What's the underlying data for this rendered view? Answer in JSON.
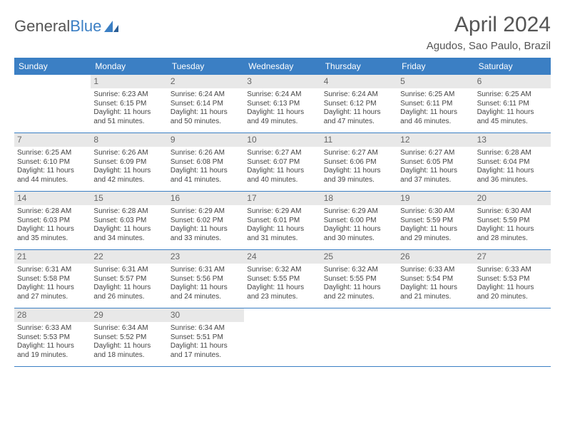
{
  "logo": {
    "part1": "General",
    "part2": "Blue"
  },
  "title": "April 2024",
  "subtitle": "Agudos, Sao Paulo, Brazil",
  "colors": {
    "header_bg": "#3b7fc4",
    "header_fg": "#ffffff",
    "daynum_bg": "#e8e8e8",
    "text": "#444444",
    "border": "#3b7fc4"
  },
  "weekdays": [
    "Sunday",
    "Monday",
    "Tuesday",
    "Wednesday",
    "Thursday",
    "Friday",
    "Saturday"
  ],
  "grid": {
    "rows": 5,
    "cols": 7,
    "first_day_offset": 1,
    "days_in_month": 30
  },
  "days": {
    "1": {
      "sunrise": "Sunrise: 6:23 AM",
      "sunset": "Sunset: 6:15 PM",
      "dl1": "Daylight: 11 hours",
      "dl2": "and 51 minutes."
    },
    "2": {
      "sunrise": "Sunrise: 6:24 AM",
      "sunset": "Sunset: 6:14 PM",
      "dl1": "Daylight: 11 hours",
      "dl2": "and 50 minutes."
    },
    "3": {
      "sunrise": "Sunrise: 6:24 AM",
      "sunset": "Sunset: 6:13 PM",
      "dl1": "Daylight: 11 hours",
      "dl2": "and 49 minutes."
    },
    "4": {
      "sunrise": "Sunrise: 6:24 AM",
      "sunset": "Sunset: 6:12 PM",
      "dl1": "Daylight: 11 hours",
      "dl2": "and 47 minutes."
    },
    "5": {
      "sunrise": "Sunrise: 6:25 AM",
      "sunset": "Sunset: 6:11 PM",
      "dl1": "Daylight: 11 hours",
      "dl2": "and 46 minutes."
    },
    "6": {
      "sunrise": "Sunrise: 6:25 AM",
      "sunset": "Sunset: 6:11 PM",
      "dl1": "Daylight: 11 hours",
      "dl2": "and 45 minutes."
    },
    "7": {
      "sunrise": "Sunrise: 6:25 AM",
      "sunset": "Sunset: 6:10 PM",
      "dl1": "Daylight: 11 hours",
      "dl2": "and 44 minutes."
    },
    "8": {
      "sunrise": "Sunrise: 6:26 AM",
      "sunset": "Sunset: 6:09 PM",
      "dl1": "Daylight: 11 hours",
      "dl2": "and 42 minutes."
    },
    "9": {
      "sunrise": "Sunrise: 6:26 AM",
      "sunset": "Sunset: 6:08 PM",
      "dl1": "Daylight: 11 hours",
      "dl2": "and 41 minutes."
    },
    "10": {
      "sunrise": "Sunrise: 6:27 AM",
      "sunset": "Sunset: 6:07 PM",
      "dl1": "Daylight: 11 hours",
      "dl2": "and 40 minutes."
    },
    "11": {
      "sunrise": "Sunrise: 6:27 AM",
      "sunset": "Sunset: 6:06 PM",
      "dl1": "Daylight: 11 hours",
      "dl2": "and 39 minutes."
    },
    "12": {
      "sunrise": "Sunrise: 6:27 AM",
      "sunset": "Sunset: 6:05 PM",
      "dl1": "Daylight: 11 hours",
      "dl2": "and 37 minutes."
    },
    "13": {
      "sunrise": "Sunrise: 6:28 AM",
      "sunset": "Sunset: 6:04 PM",
      "dl1": "Daylight: 11 hours",
      "dl2": "and 36 minutes."
    },
    "14": {
      "sunrise": "Sunrise: 6:28 AM",
      "sunset": "Sunset: 6:03 PM",
      "dl1": "Daylight: 11 hours",
      "dl2": "and 35 minutes."
    },
    "15": {
      "sunrise": "Sunrise: 6:28 AM",
      "sunset": "Sunset: 6:03 PM",
      "dl1": "Daylight: 11 hours",
      "dl2": "and 34 minutes."
    },
    "16": {
      "sunrise": "Sunrise: 6:29 AM",
      "sunset": "Sunset: 6:02 PM",
      "dl1": "Daylight: 11 hours",
      "dl2": "and 33 minutes."
    },
    "17": {
      "sunrise": "Sunrise: 6:29 AM",
      "sunset": "Sunset: 6:01 PM",
      "dl1": "Daylight: 11 hours",
      "dl2": "and 31 minutes."
    },
    "18": {
      "sunrise": "Sunrise: 6:29 AM",
      "sunset": "Sunset: 6:00 PM",
      "dl1": "Daylight: 11 hours",
      "dl2": "and 30 minutes."
    },
    "19": {
      "sunrise": "Sunrise: 6:30 AM",
      "sunset": "Sunset: 5:59 PM",
      "dl1": "Daylight: 11 hours",
      "dl2": "and 29 minutes."
    },
    "20": {
      "sunrise": "Sunrise: 6:30 AM",
      "sunset": "Sunset: 5:59 PM",
      "dl1": "Daylight: 11 hours",
      "dl2": "and 28 minutes."
    },
    "21": {
      "sunrise": "Sunrise: 6:31 AM",
      "sunset": "Sunset: 5:58 PM",
      "dl1": "Daylight: 11 hours",
      "dl2": "and 27 minutes."
    },
    "22": {
      "sunrise": "Sunrise: 6:31 AM",
      "sunset": "Sunset: 5:57 PM",
      "dl1": "Daylight: 11 hours",
      "dl2": "and 26 minutes."
    },
    "23": {
      "sunrise": "Sunrise: 6:31 AM",
      "sunset": "Sunset: 5:56 PM",
      "dl1": "Daylight: 11 hours",
      "dl2": "and 24 minutes."
    },
    "24": {
      "sunrise": "Sunrise: 6:32 AM",
      "sunset": "Sunset: 5:55 PM",
      "dl1": "Daylight: 11 hours",
      "dl2": "and 23 minutes."
    },
    "25": {
      "sunrise": "Sunrise: 6:32 AM",
      "sunset": "Sunset: 5:55 PM",
      "dl1": "Daylight: 11 hours",
      "dl2": "and 22 minutes."
    },
    "26": {
      "sunrise": "Sunrise: 6:33 AM",
      "sunset": "Sunset: 5:54 PM",
      "dl1": "Daylight: 11 hours",
      "dl2": "and 21 minutes."
    },
    "27": {
      "sunrise": "Sunrise: 6:33 AM",
      "sunset": "Sunset: 5:53 PM",
      "dl1": "Daylight: 11 hours",
      "dl2": "and 20 minutes."
    },
    "28": {
      "sunrise": "Sunrise: 6:33 AM",
      "sunset": "Sunset: 5:53 PM",
      "dl1": "Daylight: 11 hours",
      "dl2": "and 19 minutes."
    },
    "29": {
      "sunrise": "Sunrise: 6:34 AM",
      "sunset": "Sunset: 5:52 PM",
      "dl1": "Daylight: 11 hours",
      "dl2": "and 18 minutes."
    },
    "30": {
      "sunrise": "Sunrise: 6:34 AM",
      "sunset": "Sunset: 5:51 PM",
      "dl1": "Daylight: 11 hours",
      "dl2": "and 17 minutes."
    }
  }
}
